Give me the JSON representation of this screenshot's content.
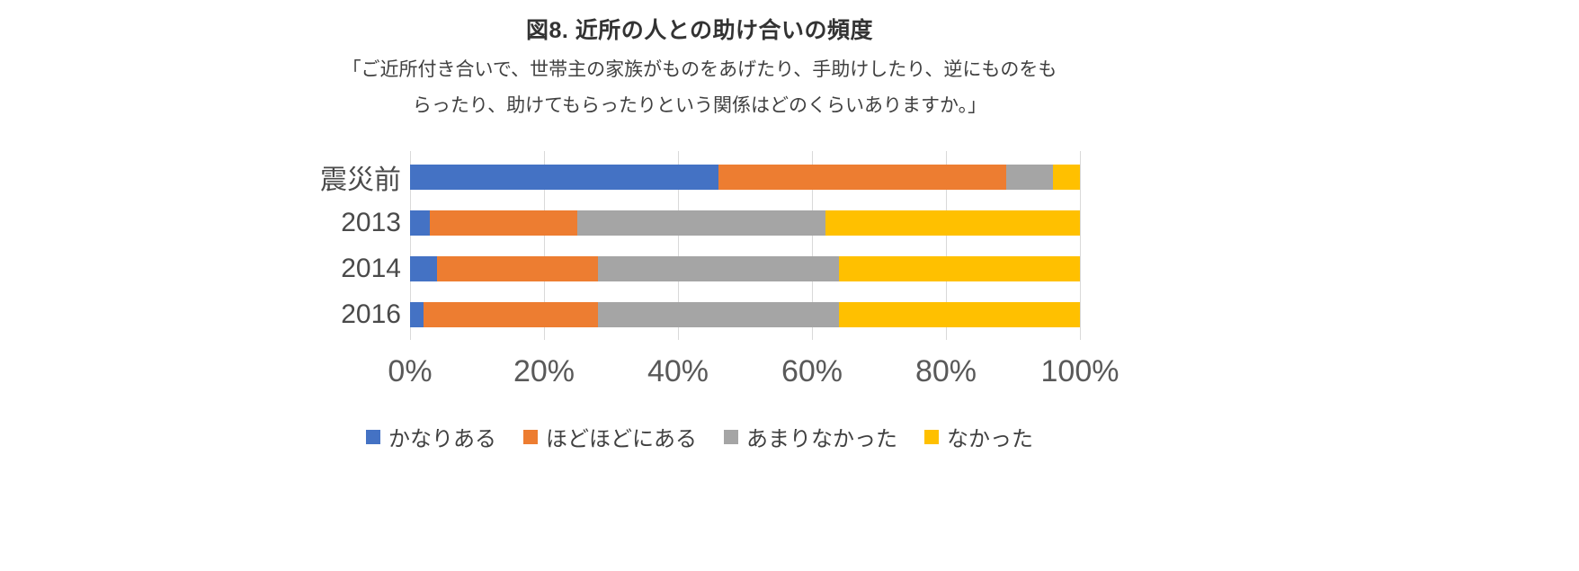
{
  "chart_data": {
    "type": "bar",
    "orientation": "horizontal-stacked",
    "title": "図8. 近所の人との助け合いの頻度",
    "subtitle_line1": "「ご近所付き合いで、世帯主の家族がものをあげたり、手助けしたり、逆にものをも",
    "subtitle_line2": "らったり、助けてもらったりという関係はどのくらいありますか。」",
    "categories": [
      "震災前",
      "2013",
      "2014",
      "2016"
    ],
    "series": [
      {
        "name": "かなりある",
        "color": "#4472C4",
        "values": [
          46,
          3,
          4,
          2
        ]
      },
      {
        "name": "ほどほどにある",
        "color": "#ED7D31",
        "values": [
          43,
          22,
          24,
          26
        ]
      },
      {
        "name": "あまりなかった",
        "color": "#A5A5A5",
        "values": [
          7,
          37,
          36,
          36
        ]
      },
      {
        "name": "なかった",
        "color": "#FFC000",
        "values": [
          4,
          38,
          36,
          36
        ]
      }
    ],
    "x_ticks": [
      "0%",
      "20%",
      "40%",
      "60%",
      "80%",
      "100%"
    ],
    "xlim": [
      0,
      100
    ],
    "grid": true,
    "legend_position": "bottom",
    "colors": {
      "gridline": "#d9d9d9",
      "axis_text": "#595959",
      "title_text": "#333333"
    }
  }
}
